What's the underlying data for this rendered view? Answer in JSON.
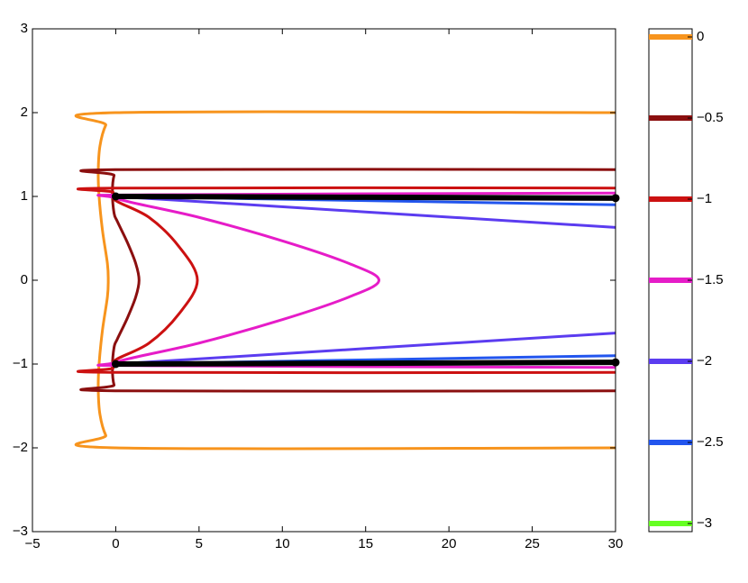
{
  "chart_data": {
    "type": "contour",
    "xlim": [
      -5,
      30
    ],
    "ylim": [
      -3,
      3
    ],
    "xticks": [
      {
        "value": -5,
        "label": "−5"
      },
      0,
      5,
      10,
      15,
      20,
      25,
      30
    ],
    "yticks": [
      {
        "value": -3,
        "label": "−3"
      },
      {
        "value": -2,
        "label": "−2"
      },
      {
        "value": -1,
        "label": "−1"
      },
      0,
      1,
      2,
      3
    ],
    "series": [
      {
        "color": "#f7941d",
        "x": [
          30,
          0,
          -0.6,
          -0.95,
          -1.05,
          -1.0,
          -0.8,
          -0.5,
          -0.45,
          -0.5,
          -0.8,
          -1.0,
          -1.05,
          -0.95,
          -0.6,
          0,
          30
        ],
        "y": [
          2,
          2,
          1.85,
          1.6,
          1.3,
          1.0,
          0.6,
          0.2,
          0,
          -0.2,
          -0.6,
          -1,
          -1.3,
          -1.6,
          -1.85,
          -2,
          -2
        ]
      },
      {
        "color": "#8b0f0f",
        "x": [
          30,
          0.2,
          -0.1,
          -0.2,
          -0.1,
          0.1,
          0.7,
          1.2,
          1.4,
          1.2,
          0.7,
          0.1,
          -0.1,
          -0.2,
          -0.1,
          0.2,
          30
        ],
        "y": [
          1.32,
          1.32,
          1.25,
          1.05,
          0.8,
          0.7,
          0.45,
          0.2,
          0,
          -0.2,
          -0.45,
          -0.7,
          -0.8,
          -1.05,
          -1.25,
          -1.32,
          -1.32
        ]
      },
      {
        "color": "#cc1111",
        "x": [
          30,
          0,
          -0.15,
          0,
          2,
          3.8,
          4.9,
          3.8,
          2,
          0,
          -0.15,
          0,
          30
        ],
        "y": [
          1.1,
          1.1,
          1.05,
          0.95,
          0.75,
          0.4,
          0,
          -0.4,
          -0.75,
          -0.95,
          -1.05,
          -1.1,
          -1.1
        ]
      },
      {
        "color": "#e61cc8",
        "x": [
          30,
          2,
          0,
          5,
          10,
          14,
          15.8,
          14,
          10,
          5,
          0,
          2,
          30
        ],
        "y": [
          1.04,
          1.02,
          0.98,
          0.75,
          0.47,
          0.2,
          0,
          -0.2,
          -0.47,
          -0.75,
          -0.98,
          -1.02,
          -1.04
        ]
      },
      {
        "color": "#5b3cf0",
        "x": [
          0,
          30,
          null,
          0,
          30
        ],
        "y": [
          1,
          0.63,
          null,
          -1,
          -0.63
        ]
      },
      {
        "color": "#2255ee",
        "x": [
          0,
          30,
          null,
          0,
          30
        ],
        "y": [
          1,
          0.9,
          null,
          -1,
          -0.9
        ]
      },
      {
        "color": "#000000",
        "width": 6,
        "markers": true,
        "x": [
          0,
          30,
          null,
          0,
          30
        ],
        "y": [
          1,
          0.98,
          null,
          -1,
          -0.98
        ]
      }
    ],
    "colorbar": {
      "clim": [
        -3.05,
        0.05
      ],
      "levels": [
        {
          "value": 0,
          "label": "0",
          "color": "#f7941d"
        },
        {
          "value": -0.5,
          "label": "−0.5",
          "color": "#8b0f0f"
        },
        {
          "value": -1,
          "label": "−1",
          "color": "#cc1111"
        },
        {
          "value": -1.5,
          "label": "−1.5",
          "color": "#e61cc8"
        },
        {
          "value": -2,
          "label": "−2",
          "color": "#5b3cf0"
        },
        {
          "value": -2.5,
          "label": "−2.5",
          "color": "#2255ee"
        },
        {
          "value": -3,
          "label": "−3",
          "color": "#66ff22"
        }
      ]
    }
  }
}
